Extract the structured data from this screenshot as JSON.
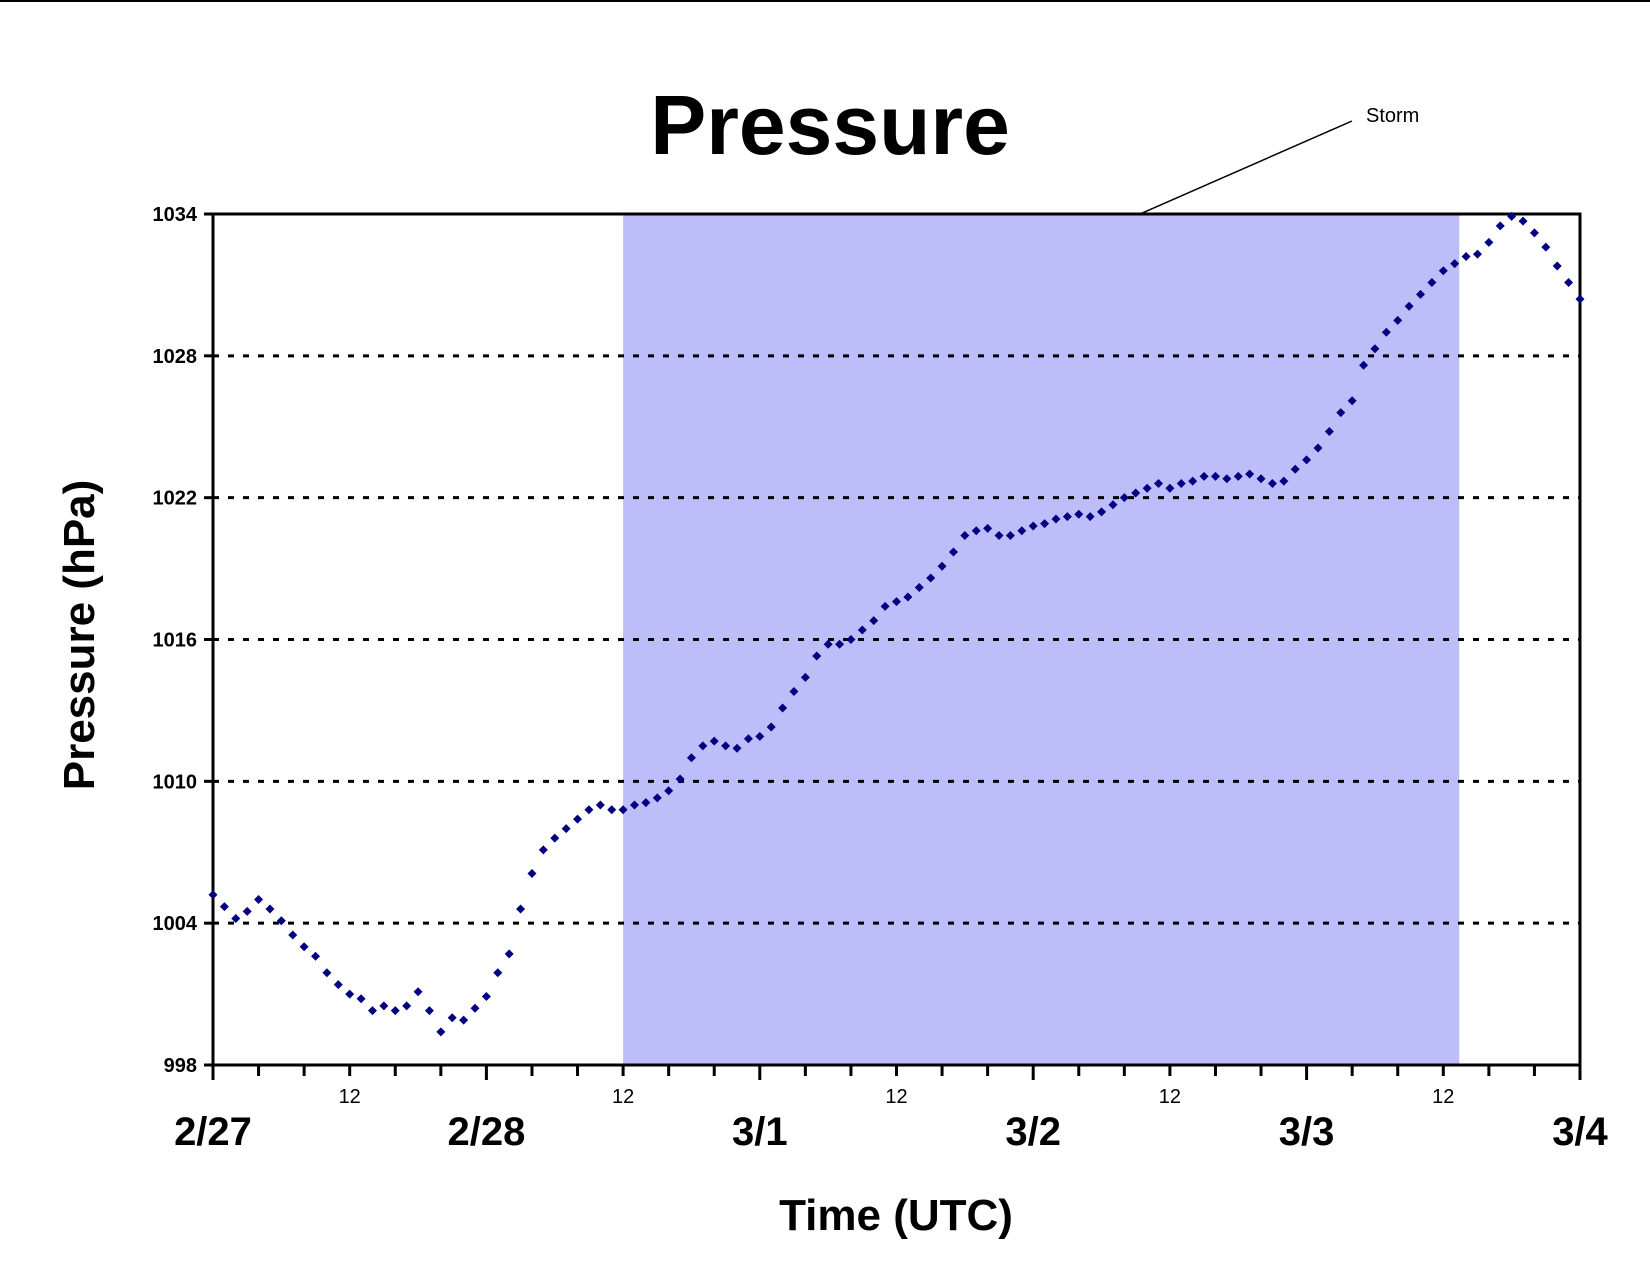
{
  "colors": {
    "storm_band": "#bdbdf9",
    "marker": "#000080",
    "gridline": "#000000",
    "frame": "#000000",
    "top_rule": "#000000"
  },
  "chart_data": {
    "type": "scatter",
    "title": "Pressure",
    "xlabel": "Time (UTC)",
    "ylabel": "Pressure (hPa)",
    "x_unit": "hours since 2/27 00 UTC",
    "xlim": [
      0,
      120
    ],
    "ylim": [
      998,
      1034
    ],
    "yticks": [
      998,
      1004,
      1010,
      1016,
      1022,
      1028,
      1034
    ],
    "gridlines": [
      1004,
      1010,
      1016,
      1022,
      1028
    ],
    "grid": "horizontal dotted",
    "day_ticks": [
      {
        "x": 0,
        "label": "2/27"
      },
      {
        "x": 24,
        "label": "2/28"
      },
      {
        "x": 48,
        "label": "3/1"
      },
      {
        "x": 72,
        "label": "3/2"
      },
      {
        "x": 96,
        "label": "3/3"
      },
      {
        "x": 120,
        "label": "3/4"
      }
    ],
    "hour_ticks": [
      {
        "x": 12,
        "label": "12"
      },
      {
        "x": 36,
        "label": "12"
      },
      {
        "x": 60,
        "label": "12"
      },
      {
        "x": 84,
        "label": "12"
      },
      {
        "x": 108,
        "label": "12"
      }
    ],
    "minor_tick_step": 4,
    "annotation": {
      "text": "Storm",
      "x_start": 36,
      "x_end": 109.4
    },
    "series": [
      {
        "name": "",
        "x": [
          0,
          1,
          2,
          3,
          4,
          5,
          6,
          7,
          8,
          9,
          10,
          11,
          12,
          13,
          14,
          15,
          16,
          17,
          18,
          19,
          20,
          21,
          22,
          23,
          24,
          25,
          26,
          27,
          28,
          29,
          30,
          31,
          32,
          33,
          34,
          35,
          36,
          37,
          38,
          39,
          40,
          41,
          42,
          43,
          44,
          45,
          46,
          47,
          48,
          49,
          50,
          51,
          52,
          53,
          54,
          55,
          56,
          57,
          58,
          59,
          60,
          61,
          62,
          63,
          64,
          65,
          66,
          67,
          68,
          69,
          70,
          71,
          72,
          73,
          74,
          75,
          76,
          77,
          78,
          79,
          80,
          81,
          82,
          83,
          84,
          85,
          86,
          87,
          88,
          89,
          90,
          91,
          92,
          93,
          94,
          95,
          96,
          97,
          98,
          99,
          100,
          101,
          102,
          103,
          104,
          105,
          106,
          107,
          108,
          109,
          110,
          111,
          112,
          113,
          114,
          115,
          116,
          117,
          118,
          119,
          120
        ],
        "values": [
          1005.2,
          1004.7,
          1004.2,
          1004.5,
          1005.0,
          1004.6,
          1004.1,
          1003.5,
          1003.0,
          1002.6,
          1001.9,
          1001.4,
          1001.0,
          1000.8,
          1000.3,
          1000.5,
          1000.3,
          1000.5,
          1001.1,
          1000.3,
          999.4,
          1000.0,
          999.9,
          1000.4,
          1000.9,
          1001.9,
          1002.7,
          1004.6,
          1006.1,
          1007.1,
          1007.6,
          1008.0,
          1008.4,
          1008.8,
          1009.0,
          1008.8,
          1008.8,
          1009.0,
          1009.1,
          1009.3,
          1009.6,
          1010.1,
          1011.0,
          1011.5,
          1011.7,
          1011.5,
          1011.4,
          1011.8,
          1011.9,
          1012.3,
          1013.1,
          1013.8,
          1014.4,
          1015.3,
          1015.8,
          1015.8,
          1016.0,
          1016.4,
          1016.8,
          1017.4,
          1017.6,
          1017.8,
          1018.2,
          1018.6,
          1019.1,
          1019.7,
          1020.4,
          1020.6,
          1020.7,
          1020.4,
          1020.4,
          1020.6,
          1020.8,
          1020.9,
          1021.1,
          1021.2,
          1021.3,
          1021.2,
          1021.4,
          1021.7,
          1022.0,
          1022.2,
          1022.4,
          1022.6,
          1022.4,
          1022.6,
          1022.7,
          1022.9,
          1022.9,
          1022.8,
          1022.9,
          1023.0,
          1022.8,
          1022.6,
          1022.7,
          1023.2,
          1023.6,
          1024.1,
          1024.8,
          1025.6,
          1026.1,
          1027.6,
          1028.3,
          1029.0,
          1029.5,
          1030.1,
          1030.6,
          1031.1,
          1031.6,
          1031.9,
          1032.2,
          1032.3,
          1032.8,
          1033.5,
          1033.9,
          1033.7,
          1033.2,
          1032.6,
          1031.8,
          1031.1,
          1030.4
        ]
      }
    ]
  }
}
